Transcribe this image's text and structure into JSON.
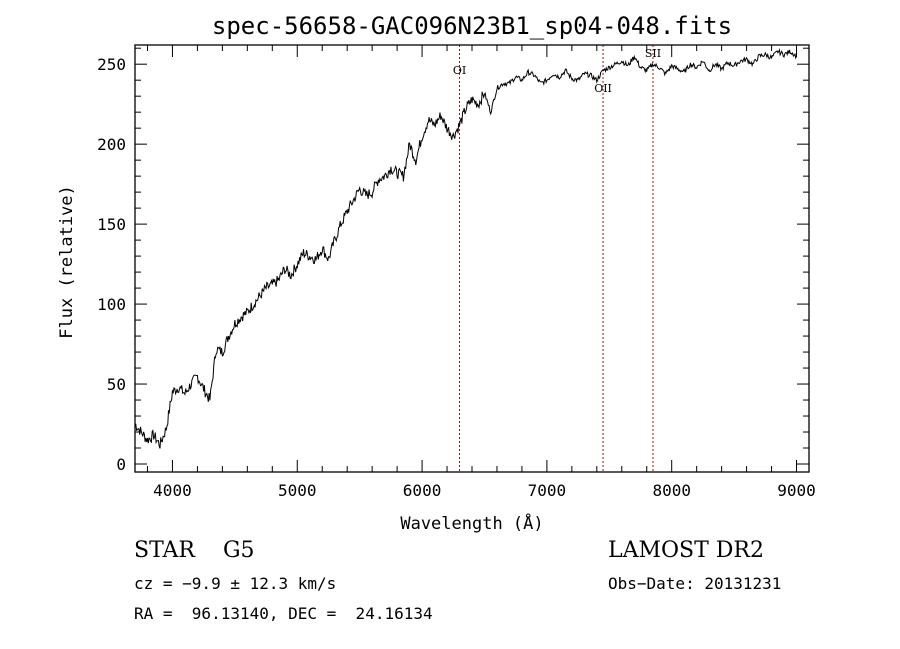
{
  "chart_data": {
    "type": "line",
    "title": "spec-56658-GAC096N23B1_sp04-048.fits",
    "xlabel": "Wavelength (Å)",
    "ylabel": "Flux (relative)",
    "xlim": [
      3700,
      9100
    ],
    "ylim": [
      -5,
      262
    ],
    "xticks": [
      4000,
      5000,
      6000,
      7000,
      8000,
      9000
    ],
    "yticks": [
      0,
      50,
      100,
      150,
      200,
      250
    ],
    "grid": false,
    "line_color": "#000000",
    "marker_color": "#8b1a1a",
    "series": [
      {
        "x": [
          3700,
          3750,
          3800,
          3850,
          3900,
          3950,
          4000,
          4050,
          4100,
          4150,
          4200,
          4250,
          4300,
          4350,
          4400,
          4450,
          4500,
          4550,
          4600,
          4650,
          4700,
          4750,
          4800,
          4850,
          4900,
          4950,
          5000,
          5050,
          5100,
          5150,
          5200,
          5250,
          5300,
          5350,
          5400,
          5450,
          5500,
          5550,
          5600,
          5650,
          5700,
          5750,
          5800,
          5850,
          5900,
          5950,
          6000,
          6050,
          6100,
          6150,
          6200,
          6250,
          6300,
          6350,
          6400,
          6450,
          6500,
          6550,
          6600,
          6650,
          6700,
          6750,
          6800,
          6850,
          6900,
          6950,
          7000,
          7050,
          7100,
          7150,
          7200,
          7250,
          7300,
          7350,
          7400,
          7450,
          7500,
          7550,
          7600,
          7650,
          7700,
          7750,
          7800,
          7850,
          7900,
          7950,
          8000,
          8050,
          8100,
          8150,
          8200,
          8250,
          8300,
          8350,
          8400,
          8450,
          8500,
          8550,
          8600,
          8650,
          8700,
          8750,
          8800,
          8850,
          8900,
          8950,
          9000
        ],
        "y": [
          25,
          20,
          15,
          18,
          12,
          22,
          45,
          48,
          44,
          50,
          55,
          47,
          40,
          72,
          70,
          80,
          88,
          92,
          95,
          100,
          105,
          110,
          112,
          115,
          122,
          118,
          125,
          132,
          130,
          128,
          135,
          128,
          140,
          150,
          158,
          165,
          172,
          168,
          170,
          178,
          180,
          185,
          182,
          180,
          200,
          190,
          205,
          215,
          212,
          218,
          210,
          205,
          212,
          222,
          228,
          225,
          232,
          220,
          235,
          238,
          238,
          242,
          240,
          245,
          243,
          238,
          240,
          244,
          242,
          246,
          241,
          240,
          244,
          243,
          240,
          246,
          248,
          250,
          252,
          249,
          255,
          248,
          246,
          250,
          248,
          244,
          249,
          247,
          245,
          250,
          248,
          252,
          246,
          250,
          247,
          251,
          249,
          252,
          253,
          250,
          255,
          256,
          254,
          258,
          256,
          258,
          255
        ]
      }
    ],
    "lines": [
      {
        "label": "OI",
        "x": 6300
      },
      {
        "label": "OII",
        "x": 7450
      },
      {
        "label": "SII",
        "x": 7850
      }
    ]
  },
  "info": {
    "classification": "STAR    G5",
    "survey": "LAMOST DR2",
    "cz": "cz = −9.9 ± 12.3 km/s",
    "obs_date": "Obs−Date: 20131231",
    "coords": "RA =  96.13140, DEC =  24.16134"
  }
}
